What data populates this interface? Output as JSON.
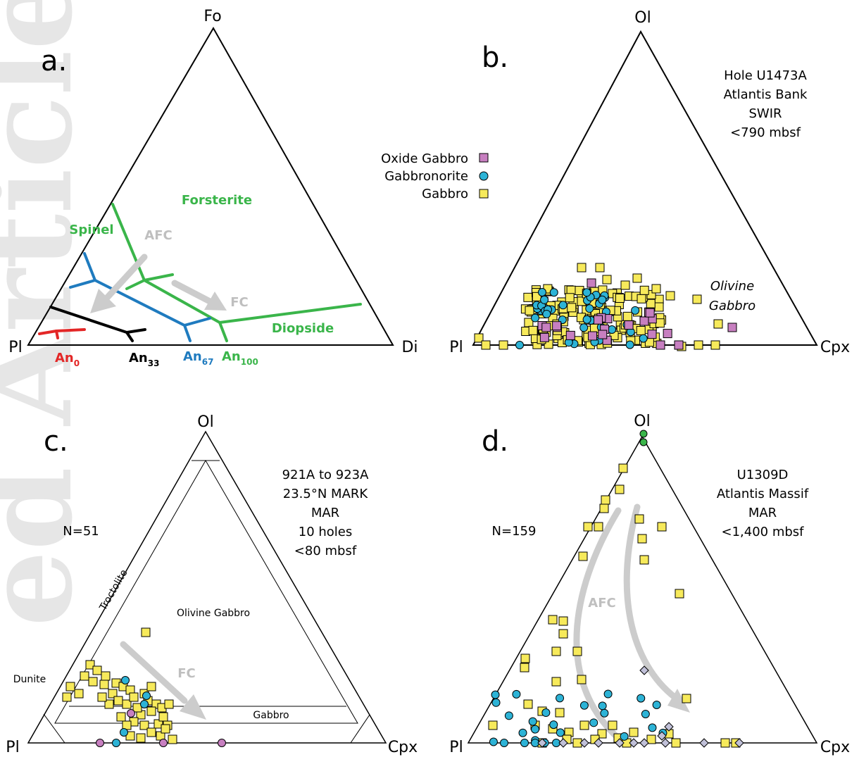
{
  "watermark": "ed Article",
  "panels": {
    "a": {
      "letter": "a.",
      "apex_top": "Fo",
      "apex_left": "Pl",
      "apex_right": "Di",
      "fields": [
        "Forsterite",
        "Spinel",
        "Diopside"
      ],
      "arrows": [
        "AFC",
        "FC"
      ],
      "isotherms": [
        "An",
        "An",
        "An",
        "An"
      ],
      "isotherm_subs": [
        "0",
        "33",
        "67",
        "100"
      ],
      "colors": {
        "green": "#3ab54a",
        "blue": "#1f7bbf",
        "black": "#000000",
        "red": "#e32626",
        "gray": "#cccccc"
      }
    },
    "b": {
      "letter": "b.",
      "apex_top": "Ol",
      "apex_left": "Pl",
      "apex_right": "Cpx",
      "info": [
        "Hole U1473A",
        "Atlantis Bank",
        "SWIR",
        "<790 mbsf"
      ],
      "legend": [
        "Oxide Gabbro",
        "Gabbronorite",
        "Gabbro"
      ],
      "field_label": [
        "Olivine",
        "Gabbro"
      ]
    },
    "c": {
      "letter": "c.",
      "apex_top": "Ol",
      "apex_left": "Pl",
      "apex_right": "Cpx",
      "info": [
        "921A to 923A",
        "23.5°N MARK",
        "MAR",
        "10 holes",
        "<80 mbsf"
      ],
      "n_label": "N=51",
      "fields": [
        "Troctolite",
        "Olivine Gabbro",
        "Dunite",
        "Gabbro"
      ],
      "arrow": "FC"
    },
    "d": {
      "letter": "d.",
      "apex_top": "Ol",
      "apex_left": "Pl",
      "apex_right": "Cpx",
      "info": [
        "U1309D",
        "Atlantis Massif",
        "MAR",
        "<1,400 mbsf"
      ],
      "n_label": "N=159",
      "arrow": "AFC"
    }
  },
  "marker_colors": {
    "gabbro": "#f7ea5b",
    "gabbronorite": "#2db3d6",
    "oxide_gabbro": "#c77fc0",
    "diamond": "#c0c0d8",
    "dunite": "#3ab54a"
  }
}
